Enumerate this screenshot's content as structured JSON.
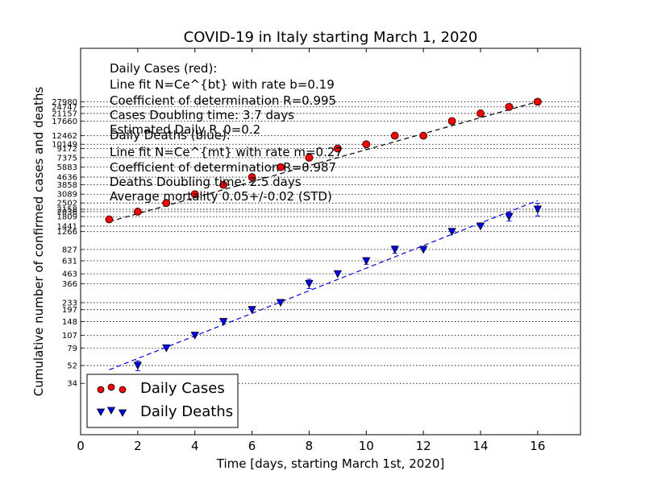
{
  "chart_data": {
    "type": "scatter",
    "title": "COVID-19 in Italy starting March 1, 2020",
    "xlabel": "Time [days, starting March 1st, 2020]",
    "ylabel": "Cumulative number of confirmed cases and deaths",
    "xlim": [
      0,
      17.5
    ],
    "ylim": [
      10,
      100000
    ],
    "yscale": "log",
    "grid": "horizontal dotted lines at each data value",
    "x_ticks": [
      0,
      2,
      4,
      6,
      8,
      10,
      12,
      14,
      16
    ],
    "x_tick_labels": [
      "0",
      "2",
      "4",
      "6",
      "8",
      "10",
      "12",
      "14",
      "16"
    ],
    "legend_position": "lower-left",
    "series": [
      {
        "name": "Daily Cases",
        "color": "#ff0000",
        "marker": "circle",
        "x": [
          1,
          2,
          3,
          4,
          5,
          6,
          7,
          8,
          9,
          10,
          11,
          12,
          13,
          14,
          15,
          16
        ],
        "y": [
          1694,
          2036,
          2502,
          3089,
          3858,
          4636,
          5883,
          7375,
          9172,
          10149,
          12462,
          12462,
          17660,
          21157,
          24747,
          27980
        ],
        "fit_line": {
          "color": "#000000",
          "style": "dashed",
          "x": [
            1,
            16
          ],
          "y": [
            1605,
            28000
          ]
        }
      },
      {
        "name": "Daily Deaths",
        "color": "#0000ff",
        "marker": "triangle-down",
        "x": [
          1,
          2,
          3,
          4,
          5,
          6,
          7,
          8,
          9,
          10,
          11,
          12,
          13,
          14,
          15,
          16
        ],
        "y": [
          34,
          52,
          79,
          107,
          148,
          197,
          233,
          366,
          463,
          631,
          827,
          827,
          1266,
          1441,
          1809,
          2158
        ],
        "y_error": [
          6,
          6,
          0,
          0,
          0,
          0,
          0,
          40,
          0,
          50,
          70,
          0,
          0,
          0,
          180,
          320
        ],
        "fit_line": {
          "color": "#0000ff",
          "style": "dashed",
          "x": [
            1,
            16
          ],
          "y": [
            47,
            2660
          ]
        }
      }
    ],
    "y_tick_labels": [
      "34",
      "52",
      "79",
      "107",
      "148",
      "197",
      "233",
      "366",
      "463",
      "631",
      "827",
      "1266",
      "1441",
      "1809",
      "2036",
      "2158",
      "2502",
      "3089",
      "3858",
      "4636",
      "5883",
      "7375",
      "9172",
      "10149",
      "12462",
      "17660",
      "21157",
      "24747",
      "27980"
    ],
    "annotations": {
      "cases_lines": [
        "Daily Cases (red):",
        "Line fit N=Ce^{bt} with rate b=0.19",
        "Coefficient of determination R=0.995",
        "Cases Doubling time: 3.7 days",
        "Estimated Daily R_0=0.2"
      ],
      "deaths_lines": [
        "Daily Deaths (blue):",
        "Line fit N=Ce^{mt} with rate m=0.27",
        "Coefficient of determination R=0.987",
        "Deaths Doubling time: 2.5 days",
        "Average mortality 0.05+/-0.02 (STD)"
      ]
    }
  }
}
